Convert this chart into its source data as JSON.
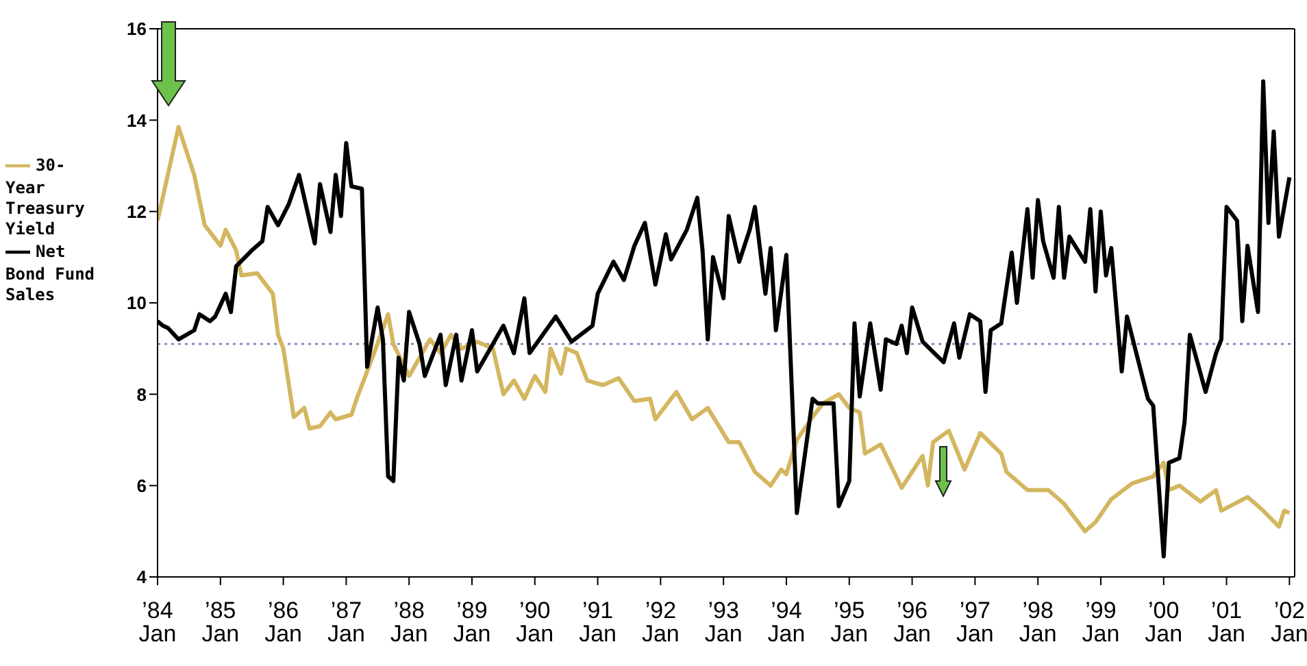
{
  "chart_data": {
    "type": "line",
    "xlim": [
      "1984-01",
      "2002-02"
    ],
    "xticks": [
      {
        "value": "1984-01",
        "label": "’84 Jan"
      },
      {
        "value": "1985-01",
        "label": "’85 Jan"
      },
      {
        "value": "1986-01",
        "label": "’86 Jan"
      },
      {
        "value": "1987-01",
        "label": "’87 Jan"
      },
      {
        "value": "1988-01",
        "label": "’88 Jan"
      },
      {
        "value": "1989-01",
        "label": "’89 Jan"
      },
      {
        "value": "1990-01",
        "label": "’90 Jan"
      },
      {
        "value": "1991-01",
        "label": "’91 Jan"
      },
      {
        "value": "1992-01",
        "label": "’92 Jan"
      },
      {
        "value": "1993-01",
        "label": "’93 Jan"
      },
      {
        "value": "1994-01",
        "label": "’94 Jan"
      },
      {
        "value": "1995-01",
        "label": "’95 Jan"
      },
      {
        "value": "1996-01",
        "label": "’96 Jan"
      },
      {
        "value": "1997-01",
        "label": "’97 Jan"
      },
      {
        "value": "1998-01",
        "label": "’98 Jan"
      },
      {
        "value": "1999-01",
        "label": "’99 Jan"
      },
      {
        "value": "2000-01",
        "label": "’00 Jan"
      },
      {
        "value": "2001-01",
        "label": "’01 Jan"
      },
      {
        "value": "2002-01",
        "label": "’02 Jan"
      }
    ],
    "ylim": [
      4,
      16
    ],
    "yticks": [
      4,
      6,
      8,
      10,
      12,
      14,
      16
    ],
    "legend": "left",
    "marker": "none",
    "line_style": "solid",
    "ref_lines": [
      {
        "axis": "y",
        "value": 9.1,
        "color": "#7a7ab8",
        "line_style": "dotted"
      }
    ],
    "series": [
      {
        "name": "30-Year Treasury Yield",
        "color": "#d4b660",
        "x": [
          "1984-01",
          "1984-05",
          "1984-08",
          "1984-10",
          "1985-01",
          "1985-02",
          "1985-04",
          "1985-05",
          "1985-08",
          "1985-11",
          "1985-12",
          "1986-01",
          "1986-03",
          "1986-05",
          "1986-06",
          "1986-08",
          "1986-10",
          "1986-11",
          "1987-02",
          "1987-03",
          "1987-05",
          "1987-06",
          "1987-09",
          "1987-10",
          "1988-01",
          "1988-05",
          "1988-07",
          "1988-09",
          "1988-11",
          "1989-02",
          "1989-05",
          "1989-07",
          "1989-09",
          "1989-11",
          "1990-01",
          "1990-03",
          "1990-04",
          "1990-06",
          "1990-07",
          "1990-09",
          "1990-11",
          "1991-02",
          "1991-05",
          "1991-08",
          "1991-11",
          "1991-12",
          "1992-04",
          "1992-07",
          "1992-10",
          "1993-02",
          "1993-04",
          "1993-07",
          "1993-10",
          "1993-12",
          "1994-01",
          "1994-03",
          "1994-06",
          "1994-08",
          "1994-11",
          "1995-01",
          "1995-03",
          "1995-04",
          "1995-07",
          "1995-11",
          "1996-03",
          "1996-04",
          "1996-05",
          "1996-08",
          "1996-11",
          "1997-02",
          "1997-06",
          "1997-07",
          "1997-11",
          "1998-03",
          "1998-06",
          "1998-10",
          "1998-12",
          "1999-03",
          "1999-07",
          "1999-11",
          "2000-01",
          "2000-02",
          "2000-04",
          "2000-08",
          "2000-11",
          "2000-12",
          "2001-05",
          "2001-08",
          "2001-11",
          "2001-12",
          "2002-01"
        ],
        "values": [
          11.8,
          13.85,
          12.8,
          11.7,
          11.25,
          11.6,
          11.15,
          10.6,
          10.65,
          10.2,
          9.3,
          9.0,
          7.5,
          7.7,
          7.25,
          7.3,
          7.6,
          7.45,
          7.55,
          7.9,
          8.5,
          8.8,
          9.75,
          9.1,
          8.4,
          9.2,
          8.9,
          9.3,
          9.0,
          9.15,
          9.0,
          8.0,
          8.3,
          7.9,
          8.4,
          8.05,
          9.0,
          8.45,
          9.0,
          8.9,
          8.3,
          8.2,
          8.35,
          7.85,
          7.9,
          7.45,
          8.05,
          7.45,
          7.7,
          6.95,
          6.95,
          6.3,
          6.0,
          6.35,
          6.25,
          7.0,
          7.5,
          7.8,
          8.0,
          7.7,
          7.6,
          6.7,
          6.9,
          5.95,
          6.65,
          6.0,
          6.95,
          7.2,
          6.35,
          7.15,
          6.7,
          6.3,
          5.9,
          5.9,
          5.6,
          5.0,
          5.2,
          5.7,
          6.05,
          6.2,
          6.5,
          5.9,
          6.0,
          5.65,
          5.9,
          5.45,
          5.75,
          5.45,
          5.1,
          5.45,
          5.4
        ]
      },
      {
        "name": "Net Bond Fund Sales",
        "color": "#000000",
        "x": [
          "1984-01",
          "1984-02",
          "1984-03",
          "1984-05",
          "1984-08",
          "1984-09",
          "1984-11",
          "1984-12",
          "1985-02",
          "1985-03",
          "1985-04",
          "1985-07",
          "1985-09",
          "1985-10",
          "1985-12",
          "1986-02",
          "1986-04",
          "1986-07",
          "1986-08",
          "1986-10",
          "1986-11",
          "1986-12",
          "1987-01",
          "1987-02",
          "1987-04",
          "1987-05",
          "1987-07",
          "1987-08",
          "1987-09",
          "1987-10",
          "1987-11",
          "1987-12",
          "1988-01",
          "1988-03",
          "1988-04",
          "1988-07",
          "1988-08",
          "1988-10",
          "1988-11",
          "1989-01",
          "1989-02",
          "1989-07",
          "1989-09",
          "1989-11",
          "1989-12",
          "1990-05",
          "1990-08",
          "1990-12",
          "1991-01",
          "1991-04",
          "1991-06",
          "1991-08",
          "1991-10",
          "1991-12",
          "1992-02",
          "1992-03",
          "1992-06",
          "1992-08",
          "1992-09",
          "1992-10",
          "1992-11",
          "1993-01",
          "1993-02",
          "1993-04",
          "1993-06",
          "1993-07",
          "1993-09",
          "1993-10",
          "1993-11",
          "1994-01",
          "1994-03",
          "1994-06",
          "1994-07",
          "1994-10",
          "1994-11",
          "1995-01",
          "1995-02",
          "1995-03",
          "1995-05",
          "1995-07",
          "1995-08",
          "1995-10",
          "1995-11",
          "1995-12",
          "1996-01",
          "1996-03",
          "1996-07",
          "1996-09",
          "1996-10",
          "1996-12",
          "1997-02",
          "1997-03",
          "1997-04",
          "1997-06",
          "1997-08",
          "1997-09",
          "1997-11",
          "1997-12",
          "1998-01",
          "1998-02",
          "1998-04",
          "1998-05",
          "1998-06",
          "1998-07",
          "1998-10",
          "1998-11",
          "1998-12",
          "1999-01",
          "1999-02",
          "1999-03",
          "1999-05",
          "1999-06",
          "1999-10",
          "1999-11",
          "2000-01",
          "2000-02",
          "2000-04",
          "2000-05",
          "2000-06",
          "2000-09",
          "2000-11",
          "2000-12",
          "2001-01",
          "2001-03",
          "2001-04",
          "2001-05",
          "2001-07",
          "2001-08",
          "2001-09",
          "2001-10",
          "2001-11",
          "2002-01"
        ],
        "values": [
          9.6,
          9.5,
          9.45,
          9.2,
          9.4,
          9.75,
          9.6,
          9.7,
          10.2,
          9.8,
          10.8,
          11.15,
          11.35,
          12.1,
          11.7,
          12.15,
          12.8,
          11.3,
          12.6,
          11.55,
          12.8,
          11.9,
          13.5,
          12.55,
          12.5,
          8.6,
          9.9,
          9.2,
          6.2,
          6.1,
          8.8,
          8.3,
          9.8,
          9.1,
          8.4,
          9.3,
          8.2,
          9.3,
          8.3,
          9.4,
          8.5,
          9.5,
          8.9,
          10.1,
          8.9,
          9.7,
          9.15,
          9.5,
          10.2,
          10.9,
          10.5,
          11.25,
          11.75,
          10.4,
          11.5,
          10.95,
          11.6,
          12.3,
          11.15,
          9.2,
          11.0,
          10.1,
          11.9,
          10.9,
          11.6,
          12.1,
          10.2,
          11.2,
          9.4,
          11.05,
          5.4,
          7.9,
          7.8,
          7.8,
          5.55,
          6.1,
          9.55,
          7.95,
          9.55,
          8.1,
          9.2,
          9.1,
          9.5,
          8.9,
          9.9,
          9.15,
          8.7,
          9.55,
          8.8,
          9.75,
          9.6,
          8.05,
          9.4,
          9.55,
          11.1,
          10.0,
          12.05,
          10.55,
          12.25,
          11.35,
          10.55,
          12.1,
          10.55,
          11.45,
          10.9,
          12.05,
          10.25,
          12.0,
          10.6,
          11.2,
          8.5,
          9.7,
          7.9,
          7.75,
          4.45,
          6.5,
          6.6,
          7.4,
          9.3,
          8.05,
          8.9,
          9.2,
          12.1,
          11.8,
          9.6,
          11.25,
          9.8,
          14.85,
          11.75,
          13.75,
          11.45,
          12.75
        ]
      }
    ]
  }
}
